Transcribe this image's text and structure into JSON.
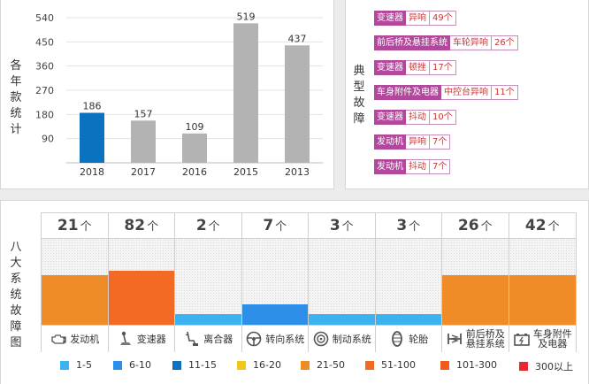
{
  "chart_data": [
    {
      "type": "bar",
      "ylabel": "各年款统计",
      "categories": [
        "2018",
        "2017",
        "2016",
        "2015",
        "2013"
      ],
      "values": [
        186,
        157,
        109,
        519,
        437
      ],
      "ylim": [
        0,
        540
      ],
      "yticks": [
        90,
        180,
        270,
        360,
        450,
        540
      ],
      "colors": [
        "#0b72c0",
        "#b3b3b3",
        "#b3b3b3",
        "#b3b3b3",
        "#b3b3b3"
      ],
      "grid": true
    },
    {
      "type": "table",
      "title": "典型故障",
      "rows": [
        {
          "system": "变速器",
          "symptom": "异响",
          "part": "",
          "count": "49个"
        },
        {
          "system": "前后桥及悬挂系统",
          "symptom": "",
          "part": "车轮异响",
          "count": "26个"
        },
        {
          "system": "变速器",
          "symptom": "顿挫",
          "part": "",
          "count": "17个"
        },
        {
          "system": "车身附件及电器",
          "symptom": "",
          "part": "中控台异响",
          "count": "11个"
        },
        {
          "system": "变速器",
          "symptom": "抖动",
          "part": "",
          "count": "10个"
        },
        {
          "system": "发动机",
          "symptom": "异响",
          "part": "",
          "count": "7个"
        },
        {
          "system": "发动机",
          "symptom": "抖动",
          "part": "",
          "count": "7个"
        }
      ]
    },
    {
      "type": "bar",
      "title": "八大系统故障图",
      "unit": "个",
      "ylim": [
        0,
        100
      ],
      "categories": [
        "发动机",
        "变速器",
        "离合器",
        "转向系统",
        "制动系统",
        "轮胎",
        "前后桥及\n悬挂系统",
        "车身附件\n及电器"
      ],
      "icons": [
        "engine-icon",
        "gear-shift-icon",
        "clutch-icon",
        "steering-wheel-icon",
        "brake-icon",
        "tire-icon",
        "suspension-icon",
        "battery-icon"
      ],
      "values": [
        21,
        82,
        2,
        7,
        3,
        3,
        26,
        42
      ],
      "level": [
        0.58,
        0.63,
        0.12,
        0.24,
        0.12,
        0.12,
        0.58,
        0.58
      ],
      "colors": [
        "#f08c28",
        "#f26a24",
        "#3cb2f0",
        "#2e8fe8",
        "#3cb2f0",
        "#3cb2f0",
        "#f08c28",
        "#f08c28"
      ],
      "legend": [
        {
          "label": "1-5",
          "color": "#3cb2f0"
        },
        {
          "label": "6-10",
          "color": "#2e8fe8"
        },
        {
          "label": "11-15",
          "color": "#0b72c0"
        },
        {
          "label": "16-20",
          "color": "#f5c518"
        },
        {
          "label": "21-50",
          "color": "#f08c28"
        },
        {
          "label": "51-100",
          "color": "#f26a24"
        },
        {
          "label": "101-300",
          "color": "#f25a1c"
        },
        {
          "label": "300以上",
          "color": "#e8262c"
        }
      ]
    }
  ]
}
